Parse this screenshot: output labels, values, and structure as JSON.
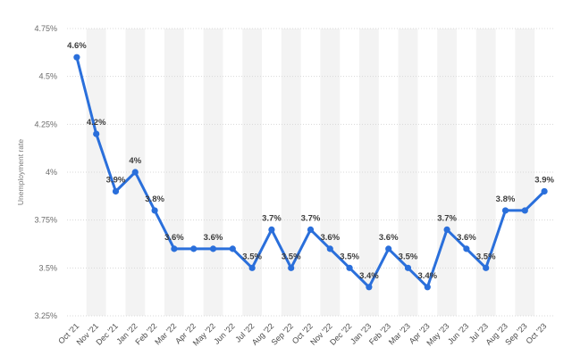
{
  "chart_data": {
    "type": "line",
    "ylabel": "Unemployment rate",
    "xlabel": "",
    "ylim": [
      3.25,
      4.75
    ],
    "yticks": [
      3.25,
      3.5,
      3.75,
      4,
      4.25,
      4.5,
      4.75
    ],
    "ytick_labels": [
      "3.25%",
      "3.5%",
      "3.75%",
      "4%",
      "4.25%",
      "4.5%",
      "4.75%"
    ],
    "categories": [
      "Oct '21",
      "Nov '21",
      "Dec '21",
      "Jan '22",
      "Feb '22",
      "Mar '22",
      "Apr '22",
      "May '22",
      "Jun '22",
      "Jul '22",
      "Aug '22",
      "Sep '22",
      "Oct '22",
      "Nov '22",
      "Dec '22",
      "Jan '23",
      "Feb '23",
      "Mar '23",
      "Apr '23",
      "May '23",
      "Jun '23",
      "Jul '23",
      "Aug '23",
      "Sep '23",
      "Oct '23"
    ],
    "values": [
      4.6,
      4.2,
      3.9,
      4.0,
      3.8,
      3.6,
      3.6,
      3.6,
      3.6,
      3.5,
      3.7,
      3.5,
      3.7,
      3.6,
      3.5,
      3.4,
      3.6,
      3.5,
      3.4,
      3.7,
      3.6,
      3.5,
      3.8,
      3.8,
      3.9
    ],
    "data_labels": [
      "4.6%",
      "4.2%",
      "3.9%",
      "4%",
      "3.8%",
      "3.6%",
      "",
      "3.6%",
      "",
      "3.5%",
      "3.7%",
      "3.5%",
      "3.7%",
      "3.6%",
      "3.5%",
      "3.4%",
      "3.6%",
      "3.5%",
      "3.4%",
      "3.7%",
      "3.6%",
      "3.5%",
      "3.8%",
      "",
      "3.9%"
    ],
    "grid": true,
    "legend": "none",
    "colors": {
      "line": "#2a6fdb",
      "band": "#f3f3f3",
      "grid": "#d8d8d8"
    }
  }
}
